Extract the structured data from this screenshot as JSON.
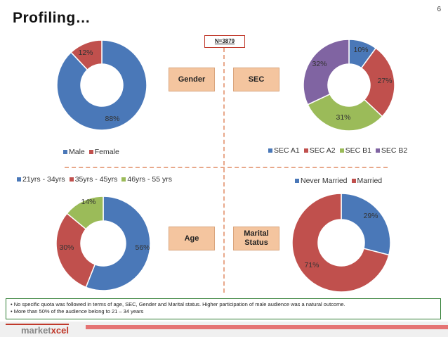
{
  "page": {
    "title": "Profiling…",
    "page_number": "6",
    "sample": "N=3879"
  },
  "tags": {
    "gender": "Gender",
    "sec": "SEC",
    "age": "Age",
    "marital_line1": "Marital",
    "marital_line2": "Status"
  },
  "notes": [
    "•   No specific quota was followed in terms of age, SEC, Gender and Marital status. Higher participation of male audience was a natural outcome.",
    "•   More than  50% of the audience belong to 21 – 34 years"
  ],
  "brand": {
    "part1": "market",
    "part2": "xcel"
  },
  "chart_data": [
    {
      "type": "pie",
      "name": "gender",
      "categories": [
        "Male",
        "Female"
      ],
      "values": [
        88,
        12
      ],
      "labels": [
        "88%",
        "12%"
      ],
      "colors": [
        "#4a78b8",
        "#c0504d"
      ],
      "legend_position": "bottom"
    },
    {
      "type": "pie",
      "name": "sec",
      "categories": [
        "SEC A1",
        "SEC A2",
        "SEC B1",
        "SEC B2"
      ],
      "values": [
        10,
        27,
        31,
        32
      ],
      "labels": [
        "10%",
        "27%",
        "31%",
        "32%"
      ],
      "colors": [
        "#4a78b8",
        "#c0504d",
        "#9bbb59",
        "#8064a2"
      ],
      "legend_position": "bottom"
    },
    {
      "type": "pie",
      "name": "age",
      "categories": [
        "21yrs - 34yrs",
        "35yrs - 45yrs",
        "46yrs - 55 yrs"
      ],
      "values": [
        56,
        30,
        14
      ],
      "labels": [
        "56%",
        "30%",
        "14%"
      ],
      "colors": [
        "#4a78b8",
        "#c0504d",
        "#9bbb59"
      ],
      "legend_position": "top"
    },
    {
      "type": "pie",
      "name": "marital",
      "categories": [
        "Never Married",
        "Married"
      ],
      "values": [
        29,
        71
      ],
      "labels": [
        "29%",
        "71%"
      ],
      "colors": [
        "#4a78b8",
        "#c0504d"
      ],
      "legend_position": "top"
    }
  ]
}
